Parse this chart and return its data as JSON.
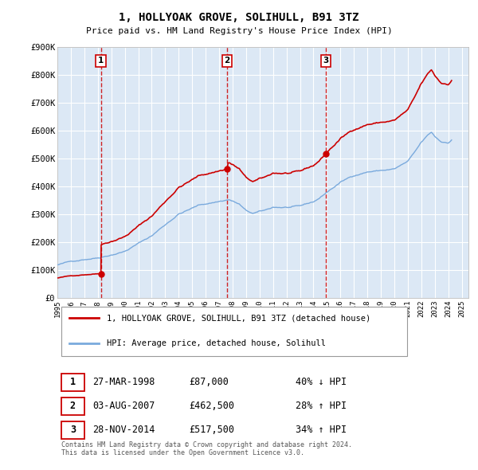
{
  "title": "1, HOLLYOAK GROVE, SOLIHULL, B91 3TZ",
  "subtitle": "Price paid vs. HM Land Registry's House Price Index (HPI)",
  "plot_bg_color": "#dce8f5",
  "sale_color": "#cc0000",
  "hpi_color": "#7aaadd",
  "ylim": [
    0,
    900000
  ],
  "xlim_start": 1995.0,
  "xlim_end": 2025.5,
  "yticks": [
    0,
    100000,
    200000,
    300000,
    400000,
    500000,
    600000,
    700000,
    800000,
    900000
  ],
  "ytick_labels": [
    "£0",
    "£100K",
    "£200K",
    "£300K",
    "£400K",
    "£500K",
    "£600K",
    "£700K",
    "£800K",
    "£900K"
  ],
  "xticks": [
    1995,
    1996,
    1997,
    1998,
    1999,
    2000,
    2001,
    2002,
    2003,
    2004,
    2005,
    2006,
    2007,
    2008,
    2009,
    2010,
    2011,
    2012,
    2013,
    2014,
    2015,
    2016,
    2017,
    2018,
    2019,
    2020,
    2021,
    2022,
    2023,
    2024,
    2025
  ],
  "sale_dates": [
    1998.23,
    2007.59,
    2014.91
  ],
  "sale_prices": [
    87000,
    462500,
    517500
  ],
  "sale_labels": [
    "1",
    "2",
    "3"
  ],
  "legend_sale_label": "1, HOLLYOAK GROVE, SOLIHULL, B91 3TZ (detached house)",
  "legend_hpi_label": "HPI: Average price, detached house, Solihull",
  "table_rows": [
    [
      "1",
      "27-MAR-1998",
      "£87,000",
      "40% ↓ HPI"
    ],
    [
      "2",
      "03-AUG-2007",
      "£462,500",
      "28% ↑ HPI"
    ],
    [
      "3",
      "28-NOV-2014",
      "£517,500",
      "34% ↑ HPI"
    ]
  ],
  "footnote": "Contains HM Land Registry data © Crown copyright and database right 2024.\nThis data is licensed under the Open Government Licence v3.0."
}
